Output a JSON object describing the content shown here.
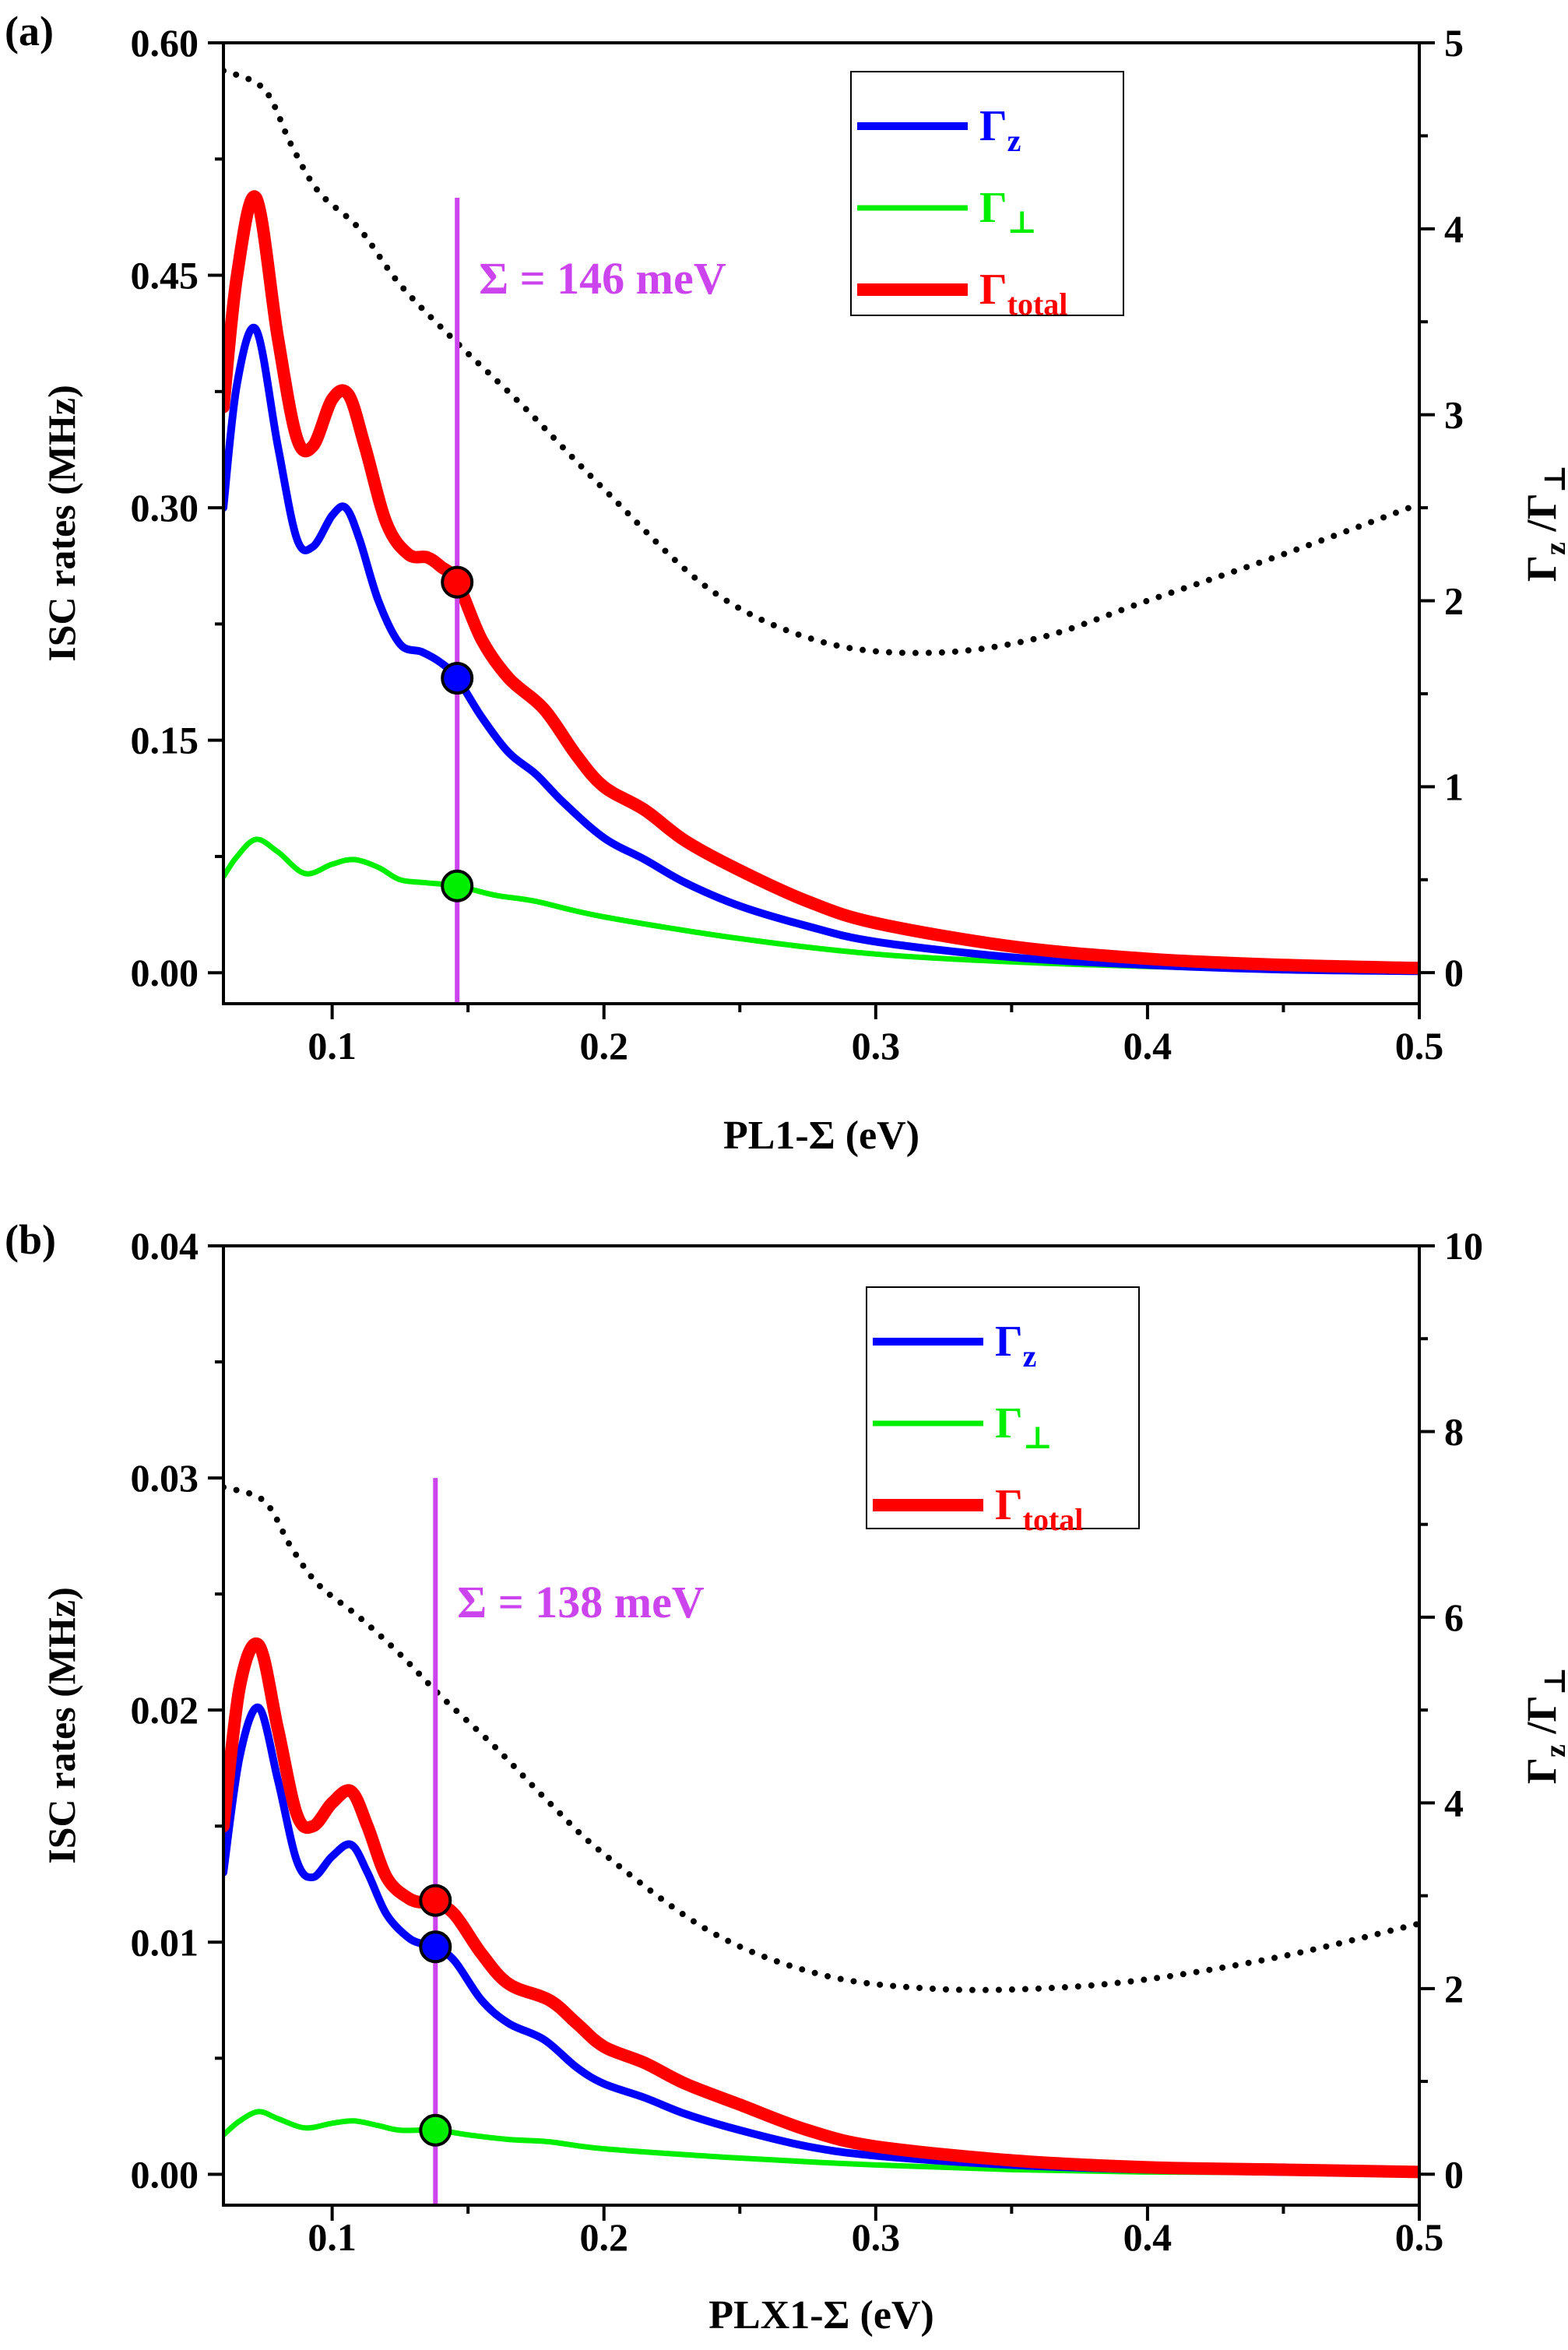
{
  "chart_data": [
    {
      "panel": "(a)",
      "type": "line",
      "xlabel": "PL1-Σ (eV)",
      "ylabel_left": "ISC rates (MHz)",
      "ylabel_right": {
        "main": "Γ",
        "sub1": "z",
        "sep": " /Γ",
        "sub2": "⊥"
      },
      "xlim": [
        0.06,
        0.5
      ],
      "ylim_left": [
        -0.02,
        0.6
      ],
      "ylim_right": [
        -0.1667,
        5
      ],
      "xticks": [
        {
          "v": 0.1,
          "label": "0.1"
        },
        {
          "v": 0.2,
          "label": "0.2"
        },
        {
          "v": 0.3,
          "label": "0.3"
        },
        {
          "v": 0.4,
          "label": "0.4"
        },
        {
          "v": 0.5,
          "label": "0.5"
        }
      ],
      "yticks_left": [
        {
          "v": 0.0,
          "label": "0.00"
        },
        {
          "v": 0.15,
          "label": "0.15"
        },
        {
          "v": 0.3,
          "label": "0.30"
        },
        {
          "v": 0.45,
          "label": "0.45"
        },
        {
          "v": 0.6,
          "label": "0.60"
        }
      ],
      "yticks_right": [
        {
          "v": 0,
          "label": "0"
        },
        {
          "v": 1,
          "label": "1"
        },
        {
          "v": 2,
          "label": "2"
        },
        {
          "v": 3,
          "label": "3"
        },
        {
          "v": 4,
          "label": "4"
        },
        {
          "v": 5,
          "label": "5"
        }
      ],
      "vline": {
        "x": 0.146,
        "y_top": 0.5,
        "label": "Σ = 146 meV",
        "color": "#cc44ee"
      },
      "legend": {
        "position": "top-right",
        "entries": [
          {
            "main": "Γ",
            "sub": "z",
            "color": "#0000ff"
          },
          {
            "main": "Γ",
            "sub": "⊥",
            "color": "#00ee00"
          },
          {
            "main": "Γ",
            "sub": "total",
            "color": "#ff0000"
          }
        ]
      },
      "series": [
        {
          "name": "Γz",
          "color": "#0000ff",
          "width": 5,
          "axis": "left",
          "x": [
            0.06,
            0.065,
            0.072,
            0.08,
            0.087,
            0.093,
            0.1,
            0.105,
            0.11,
            0.117,
            0.125,
            0.133,
            0.14,
            0.146,
            0.155,
            0.165,
            0.175,
            0.185,
            0.2,
            0.215,
            0.23,
            0.25,
            0.275,
            0.3,
            0.35,
            0.4,
            0.45,
            0.5
          ],
          "values": [
            0.3,
            0.38,
            0.415,
            0.34,
            0.28,
            0.275,
            0.295,
            0.3,
            0.28,
            0.24,
            0.212,
            0.207,
            0.2,
            0.19,
            0.165,
            0.142,
            0.128,
            0.11,
            0.087,
            0.073,
            0.058,
            0.043,
            0.03,
            0.02,
            0.01,
            0.005,
            0.002,
            0.001
          ]
        },
        {
          "name": "Γ⊥",
          "color": "#00ee00",
          "width": 3.5,
          "axis": "left",
          "x": [
            0.06,
            0.065,
            0.072,
            0.08,
            0.09,
            0.1,
            0.108,
            0.117,
            0.125,
            0.135,
            0.146,
            0.16,
            0.175,
            0.2,
            0.25,
            0.3,
            0.35,
            0.4,
            0.45,
            0.5
          ],
          "values": [
            0.062,
            0.075,
            0.086,
            0.078,
            0.064,
            0.07,
            0.073,
            0.068,
            0.06,
            0.058,
            0.056,
            0.05,
            0.046,
            0.036,
            0.022,
            0.012,
            0.007,
            0.004,
            0.002,
            0.001
          ]
        },
        {
          "name": "Γtotal",
          "color": "#ff0000",
          "width": 8,
          "axis": "left",
          "x": [
            0.06,
            0.065,
            0.072,
            0.08,
            0.087,
            0.093,
            0.1,
            0.106,
            0.112,
            0.12,
            0.128,
            0.135,
            0.14,
            0.146,
            0.155,
            0.165,
            0.178,
            0.19,
            0.2,
            0.215,
            0.23,
            0.25,
            0.275,
            0.3,
            0.35,
            0.4,
            0.45,
            0.5
          ],
          "values": [
            0.365,
            0.45,
            0.5,
            0.41,
            0.345,
            0.34,
            0.37,
            0.373,
            0.34,
            0.29,
            0.27,
            0.268,
            0.262,
            0.252,
            0.215,
            0.19,
            0.17,
            0.14,
            0.12,
            0.105,
            0.085,
            0.066,
            0.046,
            0.032,
            0.017,
            0.009,
            0.005,
            0.003
          ]
        },
        {
          "name": "Γz/Γ⊥",
          "color": "#000000",
          "dotted": true,
          "axis": "right",
          "x": [
            0.06,
            0.075,
            0.085,
            0.095,
            0.11,
            0.125,
            0.145,
            0.17,
            0.2,
            0.24,
            0.28,
            0.32,
            0.36,
            0.4,
            0.45,
            0.5
          ],
          "values": [
            4.85,
            4.75,
            4.45,
            4.2,
            4.0,
            3.7,
            3.4,
            3.05,
            2.6,
            2.05,
            1.78,
            1.72,
            1.8,
            2.0,
            2.25,
            2.52
          ]
        }
      ],
      "markers": [
        {
          "x": 0.146,
          "y": 0.252,
          "color": "#ff0000"
        },
        {
          "x": 0.146,
          "y": 0.19,
          "color": "#0000ff"
        },
        {
          "x": 0.146,
          "y": 0.056,
          "color": "#00ee00"
        }
      ]
    },
    {
      "panel": "(b)",
      "type": "line",
      "xlabel": "PLX1-Σ (eV)",
      "ylabel_left": "ISC rates (MHz)",
      "ylabel_right": {
        "main": "Γ",
        "sub1": "z",
        "sep": " /Γ",
        "sub2": "⊥"
      },
      "xlim": [
        0.06,
        0.5
      ],
      "ylim_left": [
        -0.00133,
        0.04
      ],
      "ylim_right": [
        -0.333,
        10
      ],
      "xticks": [
        {
          "v": 0.1,
          "label": "0.1"
        },
        {
          "v": 0.2,
          "label": "0.2"
        },
        {
          "v": 0.3,
          "label": "0.3"
        },
        {
          "v": 0.4,
          "label": "0.4"
        },
        {
          "v": 0.5,
          "label": "0.5"
        }
      ],
      "yticks_left": [
        {
          "v": 0.0,
          "label": "0.00"
        },
        {
          "v": 0.01,
          "label": "0.01"
        },
        {
          "v": 0.02,
          "label": "0.02"
        },
        {
          "v": 0.03,
          "label": "0.03"
        },
        {
          "v": 0.04,
          "label": "0.04"
        }
      ],
      "yticks_right": [
        {
          "v": 0,
          "label": "0"
        },
        {
          "v": 2,
          "label": "2"
        },
        {
          "v": 4,
          "label": "4"
        },
        {
          "v": 6,
          "label": "6"
        },
        {
          "v": 8,
          "label": "8"
        },
        {
          "v": 10,
          "label": "10"
        }
      ],
      "vline": {
        "x": 0.138,
        "y_top": 0.03,
        "label": "Σ = 138 meV",
        "color": "#cc44ee"
      },
      "legend": {
        "position": "top-right",
        "entries": [
          {
            "main": "Γ",
            "sub": "z",
            "color": "#0000ff"
          },
          {
            "main": "Γ",
            "sub": "⊥",
            "color": "#00ee00"
          },
          {
            "main": "Γ",
            "sub": "total",
            "color": "#ff0000"
          }
        ]
      },
      "series": [
        {
          "name": "Γz",
          "color": "#0000ff",
          "width": 5,
          "axis": "left",
          "x": [
            0.06,
            0.066,
            0.073,
            0.08,
            0.087,
            0.093,
            0.1,
            0.107,
            0.113,
            0.12,
            0.128,
            0.134,
            0.138,
            0.145,
            0.155,
            0.165,
            0.178,
            0.19,
            0.2,
            0.215,
            0.23,
            0.25,
            0.275,
            0.3,
            0.35,
            0.4,
            0.45,
            0.5
          ],
          "values": [
            0.013,
            0.018,
            0.0201,
            0.017,
            0.0135,
            0.0128,
            0.0137,
            0.0142,
            0.013,
            0.0112,
            0.0102,
            0.0099,
            0.0098,
            0.0092,
            0.0075,
            0.0065,
            0.0058,
            0.0046,
            0.0039,
            0.0033,
            0.0026,
            0.0019,
            0.0012,
            0.0008,
            0.0004,
            0.0002,
            0.0001,
            5e-05
          ]
        },
        {
          "name": "Γ⊥",
          "color": "#00ee00",
          "width": 3.5,
          "axis": "left",
          "x": [
            0.06,
            0.066,
            0.073,
            0.08,
            0.09,
            0.1,
            0.108,
            0.117,
            0.125,
            0.138,
            0.15,
            0.165,
            0.18,
            0.2,
            0.25,
            0.3,
            0.35,
            0.4,
            0.45,
            0.5
          ],
          "values": [
            0.0017,
            0.0023,
            0.0027,
            0.0024,
            0.002,
            0.0022,
            0.0023,
            0.0021,
            0.0019,
            0.0019,
            0.0017,
            0.0015,
            0.0014,
            0.0011,
            0.0007,
            0.0004,
            0.0002,
            0.0001,
            8e-05,
            5e-05
          ]
        },
        {
          "name": "Γtotal",
          "color": "#ff0000",
          "width": 8,
          "axis": "left",
          "x": [
            0.06,
            0.066,
            0.073,
            0.08,
            0.087,
            0.093,
            0.1,
            0.107,
            0.113,
            0.12,
            0.128,
            0.134,
            0.138,
            0.145,
            0.155,
            0.165,
            0.18,
            0.19,
            0.2,
            0.215,
            0.23,
            0.25,
            0.275,
            0.3,
            0.35,
            0.4,
            0.45,
            0.5
          ],
          "values": [
            0.015,
            0.021,
            0.0228,
            0.0192,
            0.0155,
            0.015,
            0.016,
            0.0165,
            0.015,
            0.0128,
            0.0119,
            0.0117,
            0.0117,
            0.0112,
            0.0095,
            0.0082,
            0.0075,
            0.0065,
            0.0055,
            0.0048,
            0.0039,
            0.003,
            0.0019,
            0.0012,
            0.0006,
            0.0003,
            0.0002,
            0.0001
          ]
        },
        {
          "name": "Γz/Γ⊥",
          "color": "#000000",
          "dotted": true,
          "axis": "right",
          "x": [
            0.06,
            0.075,
            0.085,
            0.095,
            0.11,
            0.125,
            0.14,
            0.16,
            0.18,
            0.2,
            0.24,
            0.28,
            0.32,
            0.36,
            0.4,
            0.45,
            0.5
          ],
          "values": [
            7.4,
            7.25,
            6.75,
            6.35,
            6.0,
            5.6,
            5.15,
            4.6,
            4.0,
            3.45,
            2.6,
            2.15,
            2.0,
            2.0,
            2.1,
            2.35,
            2.7
          ]
        }
      ],
      "markers": [
        {
          "x": 0.138,
          "y": 0.0118,
          "color": "#ff0000"
        },
        {
          "x": 0.138,
          "y": 0.0098,
          "color": "#0000ff"
        },
        {
          "x": 0.138,
          "y": 0.0019,
          "color": "#00ee00"
        }
      ]
    }
  ]
}
